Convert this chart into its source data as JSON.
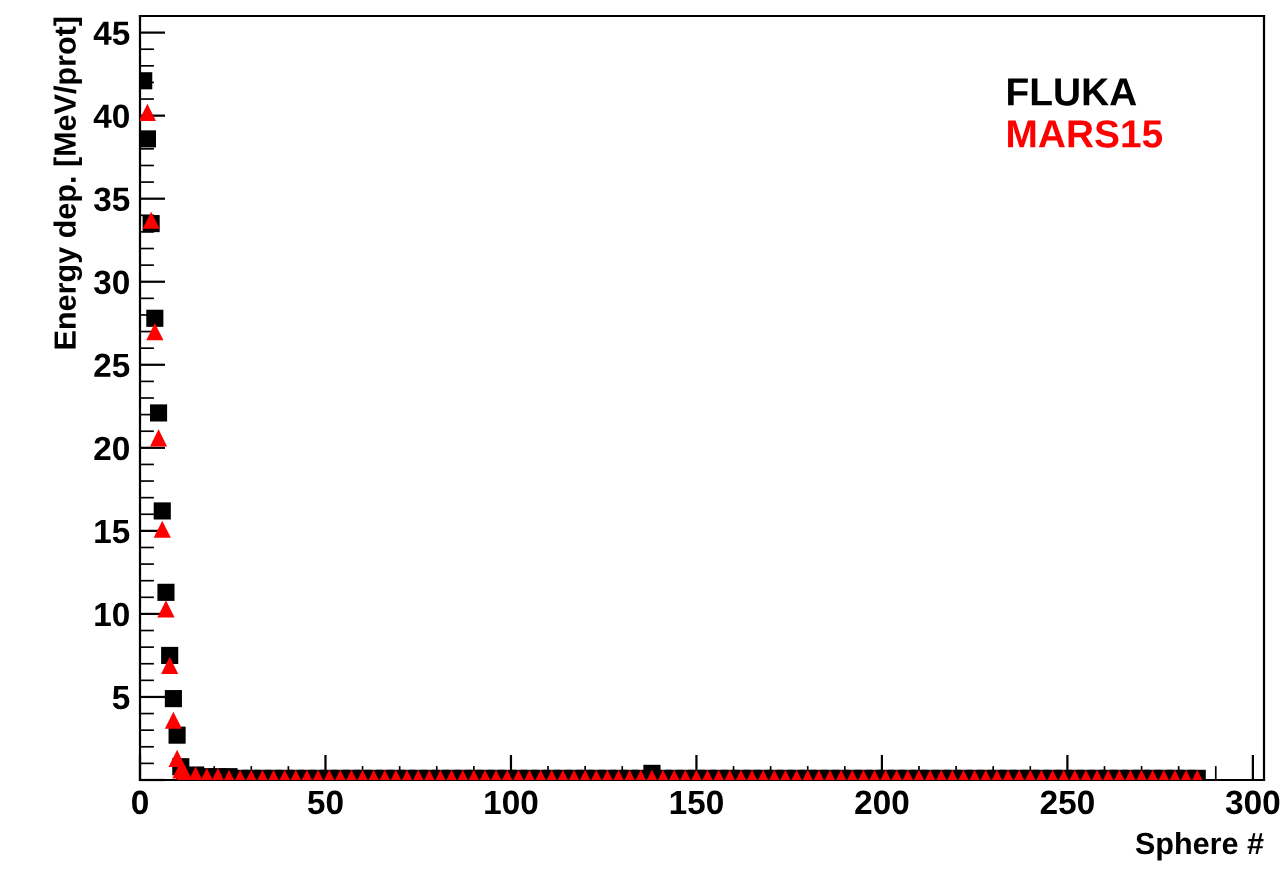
{
  "chart_data": {
    "type": "scatter",
    "xlabel": "Sphere #",
    "ylabel": "Energy dep. [MeV/prot]",
    "xlim": [
      0,
      303
    ],
    "ylim": [
      0,
      46
    ],
    "xticks": [
      0,
      50,
      100,
      150,
      200,
      250,
      300
    ],
    "yticks": [
      {
        "value": 0,
        "label": null
      },
      5,
      10,
      15,
      20,
      25,
      30,
      35,
      40,
      45
    ],
    "legend": "top right",
    "grid": false,
    "series": [
      {
        "name": "FLUKA",
        "color": "#000000",
        "marker": "square",
        "x": [
          1,
          2,
          3,
          4,
          5,
          6,
          7,
          8,
          9,
          10,
          11,
          12,
          15,
          18,
          21,
          24,
          27,
          30,
          33,
          36,
          39,
          42,
          45,
          48,
          51,
          54,
          57,
          60,
          63,
          66,
          69,
          72,
          75,
          78,
          81,
          84,
          87,
          90,
          93,
          96,
          99,
          102,
          105,
          108,
          111,
          114,
          117,
          120,
          123,
          126,
          129,
          132,
          135,
          138,
          141,
          144,
          147,
          150,
          153,
          156,
          159,
          162,
          165,
          168,
          171,
          174,
          177,
          180,
          183,
          186,
          189,
          192,
          195,
          198,
          201,
          204,
          207,
          210,
          213,
          216,
          219,
          222,
          225,
          228,
          231,
          234,
          237,
          240,
          243,
          246,
          249,
          252,
          255,
          258,
          261,
          264,
          267,
          270,
          273,
          276,
          279,
          282,
          285
        ],
        "values": [
          42.1,
          38.6,
          33.5,
          27.8,
          22.1,
          16.2,
          11.3,
          7.5,
          4.9,
          2.7,
          0.8,
          null,
          0.3,
          0.2,
          0.2,
          0.2,
          0.1,
          0.1,
          0.1,
          0.1,
          0.1,
          0.1,
          0.1,
          0.1,
          0.1,
          0.1,
          0.1,
          0.1,
          0.1,
          0.1,
          0.1,
          0.1,
          0.1,
          0.1,
          0.1,
          0.1,
          0.1,
          0.1,
          0.1,
          0.1,
          0.1,
          0.1,
          0.1,
          0.1,
          0.1,
          0.1,
          0.1,
          0.1,
          0.1,
          0.1,
          0.1,
          0.1,
          0.1,
          0.4,
          0.1,
          0.1,
          0.1,
          0.1,
          0.1,
          0.1,
          0.1,
          0.1,
          0.1,
          0.1,
          0.1,
          0.1,
          0.1,
          0.1,
          0.1,
          0.1,
          0.1,
          0.1,
          0.1,
          0.1,
          0.1,
          0.1,
          0.1,
          0.1,
          0.1,
          0.1,
          0.1,
          0.1,
          0.1,
          0.1,
          0.1,
          0.1,
          0.1,
          0.1,
          0.1,
          0.1,
          0.1,
          0.1,
          0.1,
          0.1,
          0.1,
          0.1,
          0.1,
          0.1,
          0.1,
          0.1,
          0.1,
          0.1,
          0.1
        ]
      },
      {
        "name": "MARS15",
        "color": "#ff0000",
        "marker": "triangle",
        "x": [
          2,
          3,
          4,
          5,
          6,
          7,
          8,
          9,
          10,
          11,
          12,
          15,
          18,
          21,
          24,
          27,
          30,
          33,
          36,
          39,
          42,
          45,
          48,
          51,
          54,
          57,
          60,
          63,
          66,
          69,
          72,
          75,
          78,
          81,
          84,
          87,
          90,
          93,
          96,
          99,
          102,
          105,
          108,
          111,
          114,
          117,
          120,
          123,
          126,
          129,
          132,
          135,
          138,
          141,
          144,
          147,
          150,
          153,
          156,
          159,
          162,
          165,
          168,
          171,
          174,
          177,
          180,
          183,
          186,
          189,
          192,
          195,
          198,
          201,
          204,
          207,
          210,
          213,
          216,
          219,
          222,
          225,
          228,
          231,
          234,
          237,
          240,
          243,
          246,
          249,
          252,
          255,
          258,
          261,
          264,
          267,
          270,
          273,
          276,
          279,
          282,
          285
        ],
        "values": [
          40.2,
          33.7,
          27.0,
          20.6,
          15.1,
          10.3,
          6.9,
          3.6,
          1.3,
          0.6,
          0.4,
          0.3,
          0.2,
          0.2,
          0.1,
          0.1,
          0.1,
          0.1,
          0.1,
          0.1,
          0.1,
          0.1,
          0.1,
          0.1,
          0.1,
          0.1,
          0.1,
          0.1,
          0.1,
          0.1,
          0.1,
          0.1,
          0.1,
          0.1,
          0.1,
          0.1,
          0.1,
          0.1,
          0.1,
          0.1,
          0.1,
          0.1,
          0.1,
          0.1,
          0.1,
          0.1,
          0.1,
          0.1,
          0.1,
          0.1,
          0.1,
          0.1,
          0.1,
          0.1,
          0.1,
          0.1,
          0.1,
          0.1,
          0.1,
          0.1,
          0.1,
          0.1,
          0.1,
          0.1,
          0.1,
          0.1,
          0.1,
          0.1,
          0.1,
          0.1,
          0.1,
          0.1,
          0.1,
          0.1,
          0.1,
          0.1,
          0.1,
          0.1,
          0.1,
          0.1,
          0.1,
          0.1,
          0.1,
          0.1,
          0.1,
          0.1,
          0.1,
          0.1,
          0.1,
          0.1,
          0.1,
          0.1,
          0.1,
          0.1,
          0.1,
          0.1,
          0.1,
          0.1,
          0.1,
          0.1,
          0.1,
          0.1
        ]
      }
    ]
  }
}
